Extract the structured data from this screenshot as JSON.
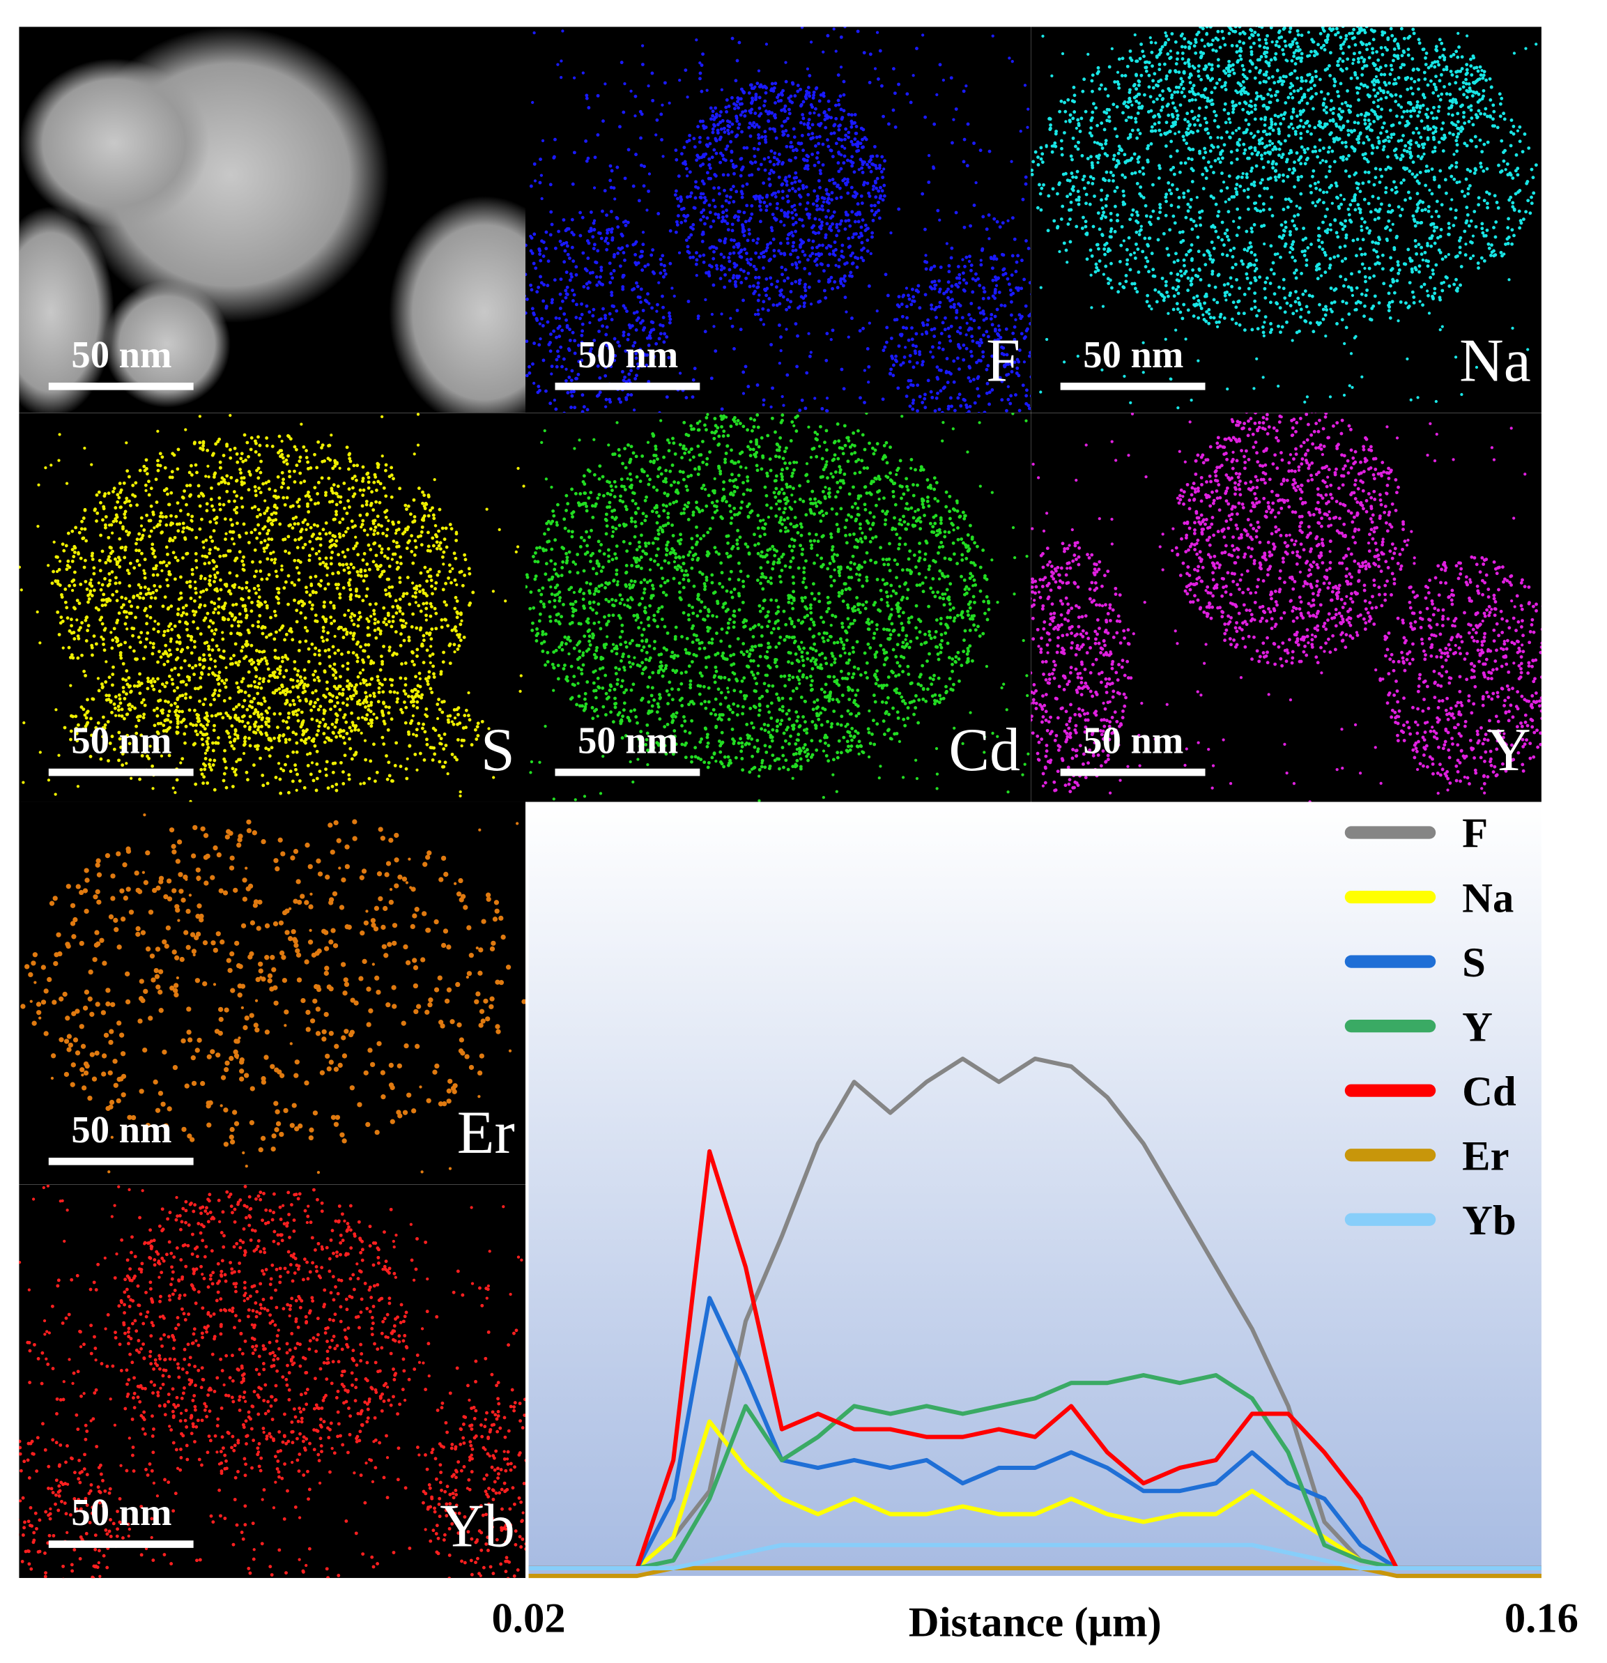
{
  "panels": [
    {
      "scale": "50 nm"
    },
    {
      "scale": "50 nm",
      "label": "F"
    },
    {
      "scale": "50 nm",
      "label": "Na"
    },
    {
      "scale": "50 nm",
      "label": "S"
    },
    {
      "scale": "50 nm",
      "label": "Cd"
    },
    {
      "scale": "50 nm",
      "label": "Y"
    },
    {
      "scale": "50 nm",
      "label": "Er"
    },
    {
      "scale": "50 nm",
      "label": "Yb"
    }
  ],
  "chart_data": {
    "type": "line",
    "x_label": "Distance (μm)",
    "xlim": [
      0.02,
      0.16
    ],
    "xticks": [
      {
        "value": 0.02,
        "label": "0.02"
      },
      {
        "value": 0.16,
        "label": "0.16"
      }
    ],
    "ylim": [
      0,
      100
    ],
    "legend": "top-right",
    "x": [
      0.02,
      0.025,
      0.03,
      0.035,
      0.04,
      0.045,
      0.05,
      0.055,
      0.06,
      0.065,
      0.07,
      0.075,
      0.08,
      0.085,
      0.09,
      0.095,
      0.1,
      0.105,
      0.11,
      0.115,
      0.12,
      0.125,
      0.13,
      0.135,
      0.14,
      0.145,
      0.15,
      0.155,
      0.16
    ],
    "series": [
      {
        "name": "F",
        "color": "#858585",
        "values": [
          1,
          1,
          1,
          1,
          5,
          11,
          33,
          44,
          56,
          64,
          60,
          64,
          67,
          64,
          67,
          66,
          62,
          56,
          48,
          40,
          32,
          22,
          7,
          2,
          1,
          1,
          1,
          1,
          1
        ]
      },
      {
        "name": "Na",
        "color": "#ffff00",
        "values": [
          1,
          1,
          1,
          1,
          5,
          20,
          14,
          10,
          8,
          10,
          8,
          8,
          9,
          8,
          8,
          10,
          8,
          7,
          8,
          8,
          11,
          8,
          5,
          2,
          1,
          1,
          1,
          1,
          1
        ]
      },
      {
        "name": "S",
        "color": "#1f6fd6",
        "values": [
          1,
          1,
          1,
          1,
          10,
          36,
          26,
          15,
          14,
          15,
          14,
          15,
          12,
          14,
          14,
          16,
          14,
          11,
          11,
          12,
          16,
          12,
          10,
          4,
          1,
          1,
          1,
          1,
          1
        ]
      },
      {
        "name": "Y",
        "color": "#3aaa64",
        "values": [
          1,
          1,
          1,
          1,
          2,
          10,
          22,
          15,
          18,
          22,
          21,
          22,
          21,
          22,
          23,
          25,
          25,
          26,
          25,
          26,
          23,
          16,
          4,
          2,
          1,
          1,
          1,
          1,
          1
        ]
      },
      {
        "name": "Cd",
        "color": "#ff0000",
        "values": [
          1,
          1,
          1,
          1,
          15,
          55,
          40,
          19,
          21,
          19,
          19,
          18,
          18,
          19,
          18,
          22,
          16,
          12,
          14,
          15,
          21,
          21,
          16,
          10,
          1,
          1,
          1,
          1,
          1
        ]
      },
      {
        "name": "Er",
        "color": "#c8960a",
        "values": [
          0,
          0,
          0,
          0,
          1,
          1,
          1,
          1,
          1,
          1,
          1,
          1,
          1,
          1,
          1,
          1,
          1,
          1,
          1,
          1,
          1,
          1,
          1,
          1,
          0,
          0,
          0,
          0,
          0
        ]
      },
      {
        "name": "Yb",
        "color": "#87cefa",
        "values": [
          1,
          1,
          1,
          1,
          1,
          2,
          3,
          4,
          4,
          4,
          4,
          4,
          4,
          4,
          4,
          4,
          4,
          4,
          4,
          4,
          4,
          3,
          2,
          1,
          1,
          1,
          1,
          1,
          1
        ]
      }
    ]
  }
}
